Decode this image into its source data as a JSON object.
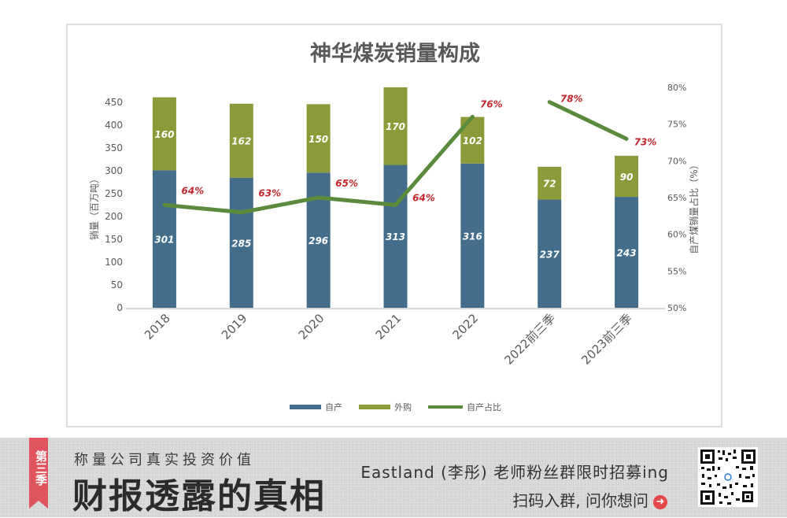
{
  "chart_data": {
    "type": "bar+line",
    "title": "神华煤炭销量构成",
    "categories": [
      "2018",
      "2019",
      "2020",
      "2021",
      "2022",
      "2022前三季",
      "2023前三季"
    ],
    "series": [
      {
        "name": "自产",
        "type": "stacked-bar",
        "color": "#436d8a",
        "values": [
          301,
          285,
          296,
          313,
          316,
          237,
          243
        ]
      },
      {
        "name": "外购",
        "type": "stacked-bar",
        "color": "#8d9a3a",
        "values": [
          160,
          162,
          150,
          170,
          102,
          72,
          90
        ]
      },
      {
        "name": "自产占比",
        "type": "line",
        "axis": "right",
        "color": "#5a8a3c",
        "values": [
          0.64,
          0.63,
          0.65,
          0.64,
          0.76,
          0.78,
          0.73
        ],
        "labels": [
          "64%",
          "63%",
          "65%",
          "64%",
          "76%",
          "78%",
          "73%"
        ],
        "segments": [
          [
            0,
            4
          ],
          [
            5,
            6
          ]
        ]
      }
    ],
    "ylabel": "销量（百万吨）",
    "y2label": "自产煤销量占比（%）",
    "ylim": [
      0,
      450
    ],
    "yticks": [
      "0",
      "50",
      "100",
      "150",
      "200",
      "250",
      "300",
      "350",
      "400",
      "450"
    ],
    "y2lim": [
      0.5,
      0.8
    ],
    "y2ticks": [
      "50%",
      "55%",
      "60%",
      "65%",
      "70%",
      "75%",
      "80%"
    ],
    "legend": {
      "position": "bottom",
      "items": [
        "自产",
        "外购",
        "自产占比"
      ]
    },
    "grid": false
  },
  "footer": {
    "badge": "第三季",
    "subtitle": "称量公司真实投资价值",
    "title": "财报透露的真相",
    "promo": "Eastland (李彤) 老师粉丝群限时招募ing",
    "cta": "扫码入群, 问你想问",
    "cta_icon": "arrow-right-circle-icon",
    "qr_icon": "qr-code-icon"
  }
}
